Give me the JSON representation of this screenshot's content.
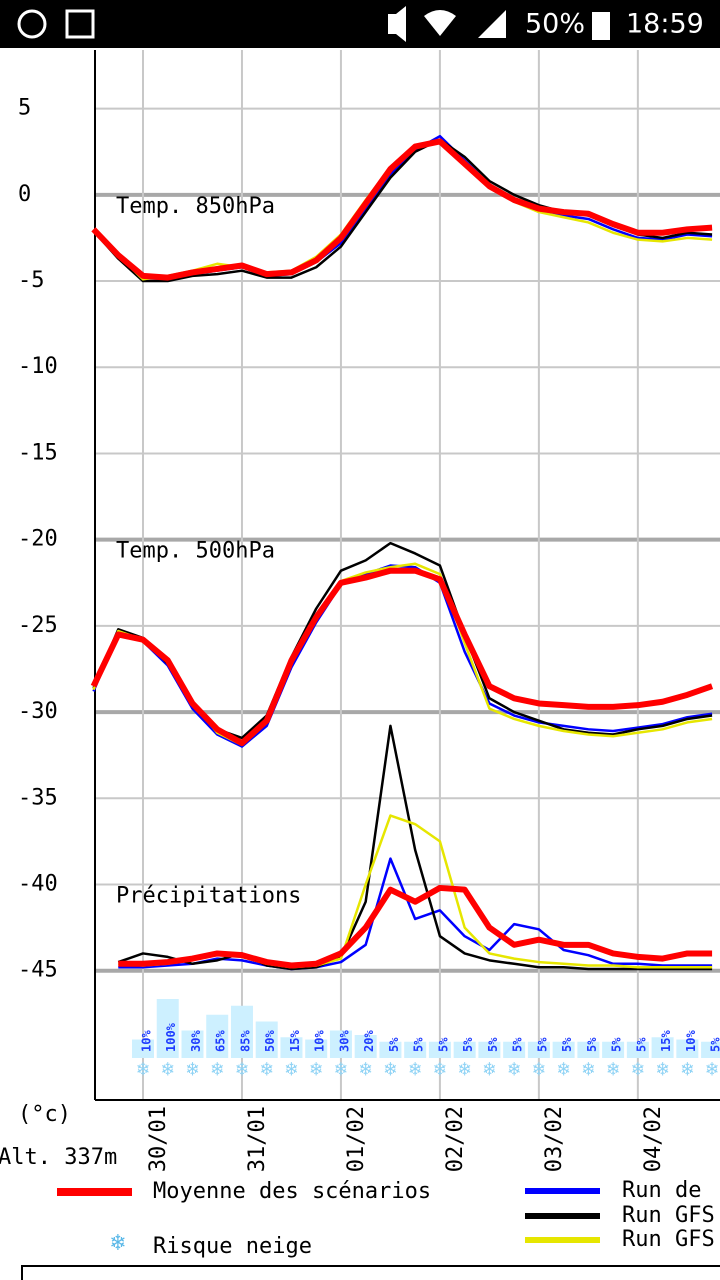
{
  "status_bar": {
    "battery": "50%",
    "time": "18:59"
  },
  "chart_data": {
    "type": "line",
    "unit_label": "(°c)",
    "altitude": "Alt. 337m",
    "annotations": [
      "Temp. 850hPa",
      "Temp. 500hPa",
      "Précipitations"
    ],
    "annotation_y": [
      0,
      -20,
      -40
    ],
    "x": [
      -0.5,
      -0.25,
      0,
      0.25,
      0.5,
      0.75,
      1,
      1.25,
      1.5,
      1.75,
      2,
      2.25,
      2.5,
      2.75,
      3,
      3.25,
      3.5,
      3.75,
      4,
      4.25,
      4.5,
      4.75,
      5,
      5.25,
      5.5,
      5.75
    ],
    "xlim": [
      -0.485,
      5.83
    ],
    "xticks": [
      {
        "value": 0,
        "label": "30/01"
      },
      {
        "value": 1,
        "label": "31/01"
      },
      {
        "value": 2,
        "label": "01/02"
      },
      {
        "value": 3,
        "label": "02/02"
      },
      {
        "value": 4,
        "label": "03/02"
      },
      {
        "value": 5,
        "label": "04/02"
      }
    ],
    "ylim": [
      -52.5,
      8.4
    ],
    "yticks": [
      5,
      0,
      -5,
      -10,
      -15,
      -20,
      -25,
      -30,
      -35,
      -40,
      -45
    ],
    "thick_lines": [
      0,
      -20,
      -30,
      -45
    ],
    "grid": true,
    "series": [
      {
        "name": "Run de",
        "color": "#0000ff",
        "panels": [
          [
            -2,
            -3.6,
            -4.8,
            -4.9,
            -4.6,
            -4.4,
            -4.2,
            -4.7,
            -4.6,
            -3.9,
            -2.8,
            -0.8,
            1.2,
            2.6,
            3.4,
            2.0,
            0.6,
            -0.2,
            -0.9,
            -1.2,
            -1.4,
            -2.0,
            -2.5,
            -2.6,
            -2.3,
            -2.4
          ],
          [
            -28.8,
            -25.4,
            -25.9,
            -27.3,
            -29.8,
            -31.3,
            -32.0,
            -30.8,
            -27.4,
            -24.8,
            -22.6,
            -22.0,
            -21.5,
            -21.6,
            -22.5,
            -26.5,
            -29.5,
            -30.2,
            -30.6,
            -30.8,
            -31.0,
            -31.1,
            -30.9,
            -30.7,
            -30.3,
            -30.1
          ],
          [
            null,
            -44.8,
            -44.8,
            -44.7,
            -44.6,
            -44.3,
            -44.4,
            -44.7,
            -44.9,
            -44.8,
            -44.5,
            -43.5,
            -38.5,
            -42.0,
            -41.5,
            -43.0,
            -43.8,
            -42.3,
            -42.6,
            -43.8,
            -44.1,
            -44.6,
            -44.6,
            -44.7,
            -44.7,
            -44.7
          ]
        ]
      },
      {
        "name": "Run GFS",
        "color": "#000000",
        "panels": [
          [
            -2.1,
            -3.7,
            -5.0,
            -5.0,
            -4.7,
            -4.6,
            -4.4,
            -4.8,
            -4.8,
            -4.2,
            -3.0,
            -1.0,
            1.0,
            2.5,
            3.2,
            2.2,
            0.8,
            0,
            -0.6,
            -1.0,
            -1.2,
            -1.8,
            -2.3,
            -2.5,
            -2.2,
            -2.3
          ],
          [
            -28.6,
            -25.2,
            -25.7,
            -27.2,
            -29.6,
            -31.0,
            -31.5,
            -30.2,
            -26.8,
            -24.0,
            -21.8,
            -21.2,
            -20.2,
            -20.8,
            -21.5,
            -25.5,
            -29.2,
            -30.0,
            -30.5,
            -31.0,
            -31.2,
            -31.3,
            -31.0,
            -30.8,
            -30.4,
            -30.2
          ],
          [
            null,
            -44.5,
            -44.0,
            -44.2,
            -44.6,
            -44.4,
            -44.0,
            -44.7,
            -44.9,
            -44.8,
            -44.2,
            -41.0,
            -30.8,
            -38.0,
            -43.0,
            -44.0,
            -44.4,
            -44.6,
            -44.8,
            -44.8,
            -44.9,
            -44.9,
            -44.9,
            -44.9,
            -44.9,
            -44.9
          ]
        ]
      },
      {
        "name": "Run GFS",
        "color": "#e6e600",
        "panels": [
          [
            -2.0,
            -3.5,
            -4.9,
            -4.7,
            -4.4,
            -4.0,
            -4.2,
            -4.5,
            -4.4,
            -3.6,
            -2.3,
            -0.3,
            1.6,
            2.9,
            3.0,
            1.7,
            0.4,
            -0.4,
            -1.0,
            -1.3,
            -1.6,
            -2.2,
            -2.6,
            -2.7,
            -2.5,
            -2.6
          ],
          [
            -28.7,
            -25.3,
            -25.8,
            -27.1,
            -29.4,
            -31.2,
            -31.9,
            -30.6,
            -27.2,
            -24.6,
            -22.4,
            -21.9,
            -21.6,
            -21.4,
            -22.0,
            -26.0,
            -29.8,
            -30.4,
            -30.8,
            -31.1,
            -31.3,
            -31.4,
            -31.2,
            -31.0,
            -30.6,
            -30.4
          ],
          [
            null,
            -44.6,
            -44.7,
            -44.6,
            -44.3,
            -44.0,
            -44.2,
            -44.6,
            -44.8,
            -44.7,
            -44.3,
            -40.0,
            -36.0,
            -36.5,
            -37.5,
            -42.5,
            -44.0,
            -44.3,
            -44.5,
            -44.6,
            -44.7,
            -44.7,
            -44.8,
            -44.8,
            -44.8,
            -44.8
          ]
        ]
      },
      {
        "name": "Moyenne des scénarios",
        "color": "#ff0000",
        "panels": [
          [
            -2,
            -3.5,
            -4.7,
            -4.8,
            -4.5,
            -4.3,
            -4.1,
            -4.6,
            -4.5,
            -3.8,
            -2.5,
            -0.5,
            1.5,
            2.8,
            3.1,
            1.8,
            0.5,
            -0.3,
            -0.8,
            -1.0,
            -1.1,
            -1.7,
            -2.2,
            -2.2,
            -2.0,
            -1.9
          ],
          [
            -28.5,
            -25.5,
            -25.8,
            -27.0,
            -29.5,
            -31.0,
            -31.8,
            -30.5,
            -27.0,
            -24.5,
            -22.5,
            -22.2,
            -21.8,
            -21.8,
            -22.3,
            -25.5,
            -28.5,
            -29.2,
            -29.5,
            -29.6,
            -29.7,
            -29.7,
            -29.6,
            -29.4,
            -29.0,
            -28.5
          ],
          [
            null,
            -44.6,
            -44.6,
            -44.5,
            -44.3,
            -44.0,
            -44.1,
            -44.5,
            -44.7,
            -44.6,
            -44.0,
            -42.5,
            -40.3,
            -41.0,
            -40.2,
            -40.3,
            -42.5,
            -43.5,
            -43.2,
            -43.5,
            -43.5,
            -44.0,
            -44.2,
            -44.3,
            -44.0,
            -44.0
          ]
        ]
      }
    ],
    "snow_risk": {
      "name": "Risque neige",
      "x": [
        0,
        0.25,
        0.5,
        0.75,
        1,
        1.25,
        1.5,
        1.75,
        2,
        2.25,
        2.5,
        2.75,
        3,
        3.25,
        3.5,
        3.75,
        4,
        4.25,
        4.5,
        4.75,
        5,
        5.25,
        5.5,
        5.75
      ],
      "values": [
        10,
        100,
        30,
        65,
        85,
        50,
        15,
        10,
        30,
        20,
        5,
        5,
        5,
        5,
        5,
        5,
        5,
        5,
        5,
        5,
        5,
        15,
        10,
        5
      ],
      "value_labels": [
        "10%",
        "100%",
        "30%",
        "65%",
        "85%",
        "50%",
        "15%",
        "10%",
        "30%",
        "20%",
        "5%",
        "5%",
        "5%",
        "5%",
        "5%",
        "5%",
        "5%",
        "5%",
        "5%",
        "5%",
        "5%",
        "15%",
        "10%",
        "5%"
      ]
    }
  }
}
